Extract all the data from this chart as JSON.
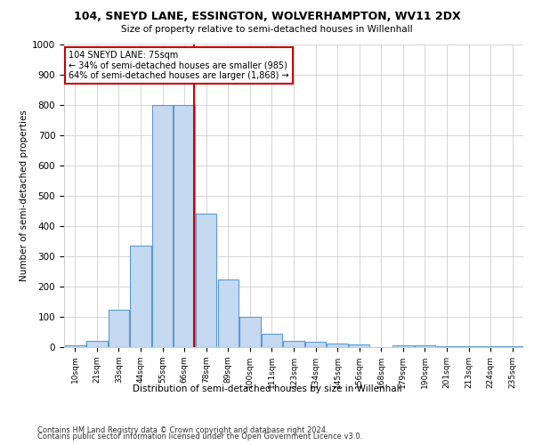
{
  "title1": "104, SNEYD LANE, ESSINGTON, WOLVERHAMPTON, WV11 2DX",
  "title2": "Size of property relative to semi-detached houses in Willenhall",
  "xlabel": "Distribution of semi-detached houses by size in Willenhall",
  "ylabel": "Number of semi-detached properties",
  "categories": [
    "10sqm",
    "21sqm",
    "33sqm",
    "44sqm",
    "55sqm",
    "66sqm",
    "78sqm",
    "89sqm",
    "100sqm",
    "111sqm",
    "123sqm",
    "134sqm",
    "145sqm",
    "156sqm",
    "168sqm",
    "179sqm",
    "190sqm",
    "201sqm",
    "213sqm",
    "224sqm",
    "235sqm"
  ],
  "bar_heights": [
    5,
    20,
    125,
    335,
    800,
    800,
    440,
    225,
    100,
    45,
    20,
    18,
    13,
    10,
    0,
    7,
    5,
    3,
    2,
    2,
    2
  ],
  "bar_color": "#c5d9f0",
  "bar_edge_color": "#5b9bd5",
  "annotation_line1": "104 SNEYD LANE: 75sqm",
  "annotation_line2": "← 34% of semi-detached houses are smaller (985)",
  "annotation_line3": "64% of semi-detached houses are larger (1,868) →",
  "annotation_box_color": "#ffffff",
  "annotation_box_edge": "#cc0000",
  "vline_color": "#cc0000",
  "vline_x_index": 5.5,
  "ylim": [
    0,
    1000
  ],
  "yticks": [
    0,
    100,
    200,
    300,
    400,
    500,
    600,
    700,
    800,
    900,
    1000
  ],
  "footer1": "Contains HM Land Registry data © Crown copyright and database right 2024.",
  "footer2": "Contains public sector information licensed under the Open Government Licence v3.0.",
  "background_color": "#ffffff",
  "grid_color": "#d0d0d0"
}
